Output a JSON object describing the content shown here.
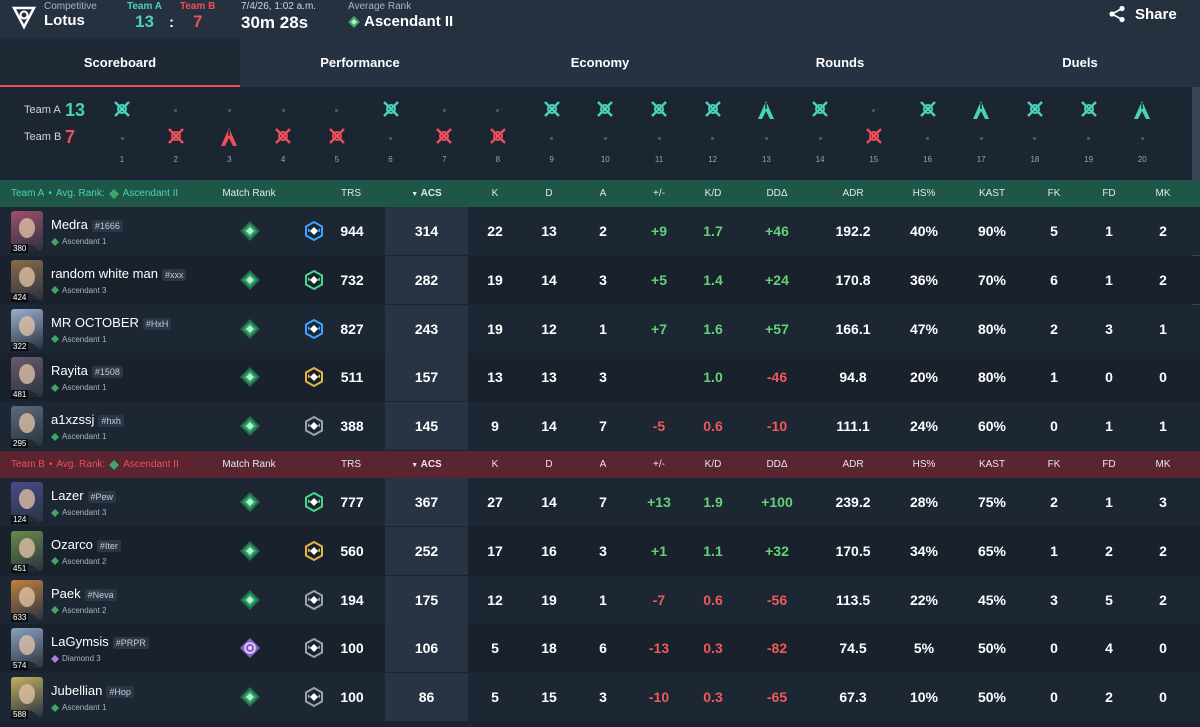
{
  "header": {
    "mode": "Competitive",
    "map": "Lotus",
    "team_a_label": "Team A",
    "team_b_label": "Team B",
    "score_a": "13",
    "score_sep": ":",
    "score_b": "7",
    "datetime": "7/4/26, 1:02 a.m.",
    "duration": "30m 28s",
    "avg_rank_label": "Average Rank",
    "avg_rank_value": "Ascendant II",
    "share_label": "Share"
  },
  "tabs": [
    "Scoreboard",
    "Performance",
    "Economy",
    "Rounds",
    "Duels"
  ],
  "timeline": {
    "team_a_label": "Team A",
    "team_a_score": "13",
    "team_b_label": "Team B",
    "team_b_score": "7",
    "rounds": [
      {
        "n": "1",
        "winner": "A",
        "type": "elim"
      },
      {
        "n": "2",
        "winner": "B",
        "type": "elim"
      },
      {
        "n": "3",
        "winner": "B",
        "type": "defuse"
      },
      {
        "n": "4",
        "winner": "B",
        "type": "elim"
      },
      {
        "n": "5",
        "winner": "B",
        "type": "elim"
      },
      {
        "n": "6",
        "winner": "A",
        "type": "elim"
      },
      {
        "n": "7",
        "winner": "B",
        "type": "elim"
      },
      {
        "n": "8",
        "winner": "B",
        "type": "elim"
      },
      {
        "n": "9",
        "winner": "A",
        "type": "elim"
      },
      {
        "n": "10",
        "winner": "A",
        "type": "elim"
      },
      {
        "n": "11",
        "winner": "A",
        "type": "elim"
      },
      {
        "n": "12",
        "winner": "A",
        "type": "elim"
      },
      {
        "n": "13",
        "winner": "A",
        "type": "defuse"
      },
      {
        "n": "14",
        "winner": "A",
        "type": "elim"
      },
      {
        "n": "15",
        "winner": "B",
        "type": "elim"
      },
      {
        "n": "16",
        "winner": "A",
        "type": "elim"
      },
      {
        "n": "17",
        "winner": "A",
        "type": "defuse"
      },
      {
        "n": "18",
        "winner": "A",
        "type": "elim"
      },
      {
        "n": "19",
        "winner": "A",
        "type": "elim"
      },
      {
        "n": "20",
        "winner": "A",
        "type": "defuse"
      }
    ]
  },
  "columns": {
    "match_rank": "Match Rank",
    "trs": "TRS",
    "acs": "ACS",
    "k": "K",
    "d": "D",
    "a": "A",
    "pm": "+/-",
    "kd": "K/D",
    "dd": "DDΔ",
    "adr": "ADR",
    "hs": "HS%",
    "kast": "KAST",
    "fk": "FK",
    "fd": "FD",
    "mk": "MK"
  },
  "colors": {
    "team_a": "#49d3b6",
    "team_b": "#ef4f5a",
    "positive": "#63d376",
    "negative": "#ef5a5a"
  },
  "teams": [
    {
      "label": "Team A",
      "avg_label": "Avg. Rank:",
      "avg_rank": "Ascendant II",
      "players": [
        {
          "name": "Medra",
          "tag": "#1666",
          "level": "380",
          "rank": "Ascendant 1",
          "trs": "944",
          "acs": "314",
          "k": "22",
          "d": "13",
          "a": "2",
          "pm": "+9",
          "kd": "1.7",
          "dd": "+46",
          "adr": "192.2",
          "hs": "40%",
          "kast": "90%",
          "fk": "5",
          "fd": "1",
          "mk": "2",
          "trs_tier": "blue",
          "avatar": "#a0506a"
        },
        {
          "name": "random white man",
          "tag": "#xxx",
          "level": "424",
          "rank": "Ascendant 3",
          "trs": "732",
          "acs": "282",
          "k": "19",
          "d": "14",
          "a": "3",
          "pm": "+5",
          "kd": "1.4",
          "dd": "+24",
          "adr": "170.8",
          "hs": "36%",
          "kast": "70%",
          "fk": "6",
          "fd": "1",
          "mk": "2",
          "trs_tier": "green",
          "avatar": "#8a6a4a"
        },
        {
          "name": "MR OCTOBER",
          "tag": "#HxH",
          "level": "322",
          "rank": "Ascendant 1",
          "trs": "827",
          "acs": "243",
          "k": "19",
          "d": "12",
          "a": "1",
          "pm": "+7",
          "kd": "1.6",
          "dd": "+57",
          "adr": "166.1",
          "hs": "47%",
          "kast": "80%",
          "fk": "2",
          "fd": "3",
          "mk": "1",
          "trs_tier": "blue",
          "avatar": "#9ab0d0"
        },
        {
          "name": "Rayita",
          "tag": "#1508",
          "level": "481",
          "rank": "Ascendant 1",
          "trs": "511",
          "acs": "157",
          "k": "13",
          "d": "13",
          "a": "3",
          "pm": "",
          "kd": "1.0",
          "dd": "-46",
          "adr": "94.8",
          "hs": "20%",
          "kast": "80%",
          "fk": "1",
          "fd": "0",
          "mk": "0",
          "trs_tier": "gold",
          "avatar": "#6a5a6a"
        },
        {
          "name": "a1xzssj",
          "tag": "#hxh",
          "level": "295",
          "rank": "Ascendant 1",
          "trs": "388",
          "acs": "145",
          "k": "9",
          "d": "14",
          "a": "7",
          "pm": "-5",
          "kd": "0.6",
          "dd": "-10",
          "adr": "111.1",
          "hs": "24%",
          "kast": "60%",
          "fk": "0",
          "fd": "1",
          "mk": "1",
          "trs_tier": "grey",
          "avatar": "#5a6a7a"
        }
      ]
    },
    {
      "label": "Team B",
      "avg_label": "Avg. Rank:",
      "avg_rank": "Ascendant II",
      "players": [
        {
          "name": "Lazer",
          "tag": "#Pew",
          "level": "124",
          "rank": "Ascendant 3",
          "trs": "777",
          "acs": "367",
          "k": "27",
          "d": "14",
          "a": "7",
          "pm": "+13",
          "kd": "1.9",
          "dd": "+100",
          "adr": "239.2",
          "hs": "28%",
          "kast": "75%",
          "fk": "2",
          "fd": "1",
          "mk": "3",
          "trs_tier": "green",
          "avatar": "#4a4a8a"
        },
        {
          "name": "Ozarco",
          "tag": "#Iter",
          "level": "451",
          "rank": "Ascendant 2",
          "trs": "560",
          "acs": "252",
          "k": "17",
          "d": "16",
          "a": "3",
          "pm": "+1",
          "kd": "1.1",
          "dd": "+32",
          "adr": "170.5",
          "hs": "34%",
          "kast": "65%",
          "fk": "1",
          "fd": "2",
          "mk": "2",
          "trs_tier": "gold",
          "avatar": "#6a8a4a"
        },
        {
          "name": "Paek",
          "tag": "#Neva",
          "level": "633",
          "rank": "Ascendant 2",
          "trs": "194",
          "acs": "175",
          "k": "12",
          "d": "19",
          "a": "1",
          "pm": "-7",
          "kd": "0.6",
          "dd": "-56",
          "adr": "113.5",
          "hs": "22%",
          "kast": "45%",
          "fk": "3",
          "fd": "5",
          "mk": "2",
          "trs_tier": "grey",
          "avatar": "#c08040"
        },
        {
          "name": "LaGymsis",
          "tag": "#PRPR",
          "level": "574",
          "rank": "Diamond 3",
          "trs": "100",
          "acs": "106",
          "k": "5",
          "d": "18",
          "a": "6",
          "pm": "-13",
          "kd": "0.3",
          "dd": "-82",
          "adr": "74.5",
          "hs": "5%",
          "kast": "50%",
          "fk": "0",
          "fd": "4",
          "mk": "0",
          "trs_tier": "grey",
          "avatar": "#8aa0c0",
          "diamond": true
        },
        {
          "name": "Jubellian",
          "tag": "#Hop",
          "level": "588",
          "rank": "Ascendant 1",
          "trs": "100",
          "acs": "86",
          "k": "5",
          "d": "15",
          "a": "3",
          "pm": "-10",
          "kd": "0.3",
          "dd": "-65",
          "adr": "67.3",
          "hs": "10%",
          "kast": "50%",
          "fk": "0",
          "fd": "2",
          "mk": "0",
          "trs_tier": "grey",
          "avatar": "#c0b060"
        }
      ]
    }
  ]
}
